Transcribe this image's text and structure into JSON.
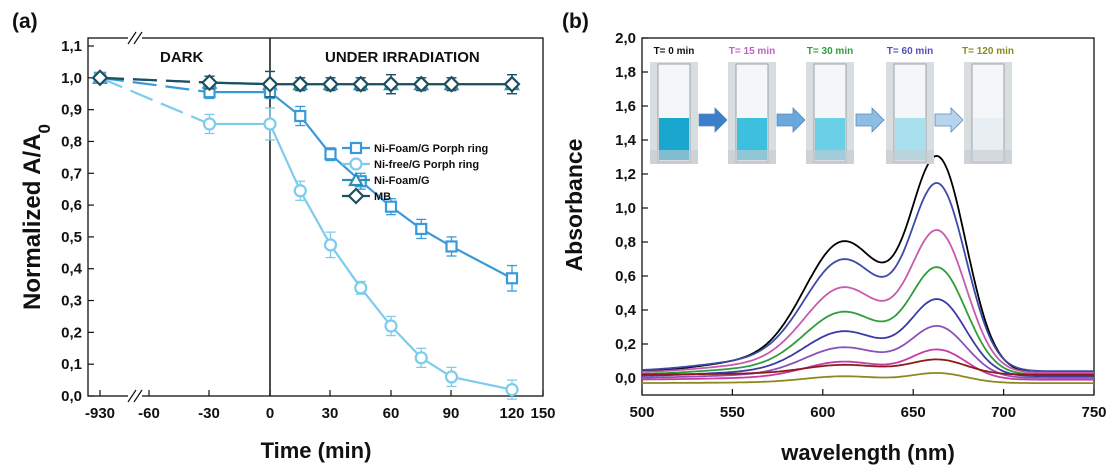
{
  "panel_a_letter": "(a)",
  "panel_b_letter": "(b)",
  "chart_data": [
    {
      "type": "line",
      "panel": "(a)",
      "xlabel": "Time (min)",
      "ylabel": "Normalized A/A",
      "ylabel_subscript": "0",
      "x_ticks": [
        "-930",
        "-60",
        "-30",
        "0",
        "30",
        "60",
        "90",
        "120",
        "150"
      ],
      "y_ticks": [
        "0,0",
        "0,1",
        "0,2",
        "0,3",
        "0,4",
        "0,5",
        "0,6",
        "0,7",
        "0,8",
        "0,9",
        "1,0",
        "1,1"
      ],
      "ylim": [
        0,
        1.1
      ],
      "regions": {
        "dark": "DARK",
        "irradiation": "UNDER IRRADIATION"
      },
      "legend_position": "center-right",
      "series": [
        {
          "name": "Ni-Foam/G Porph ring",
          "marker": "square",
          "color": "#3a9ad9",
          "x": [
            -930,
            -30,
            0,
            15,
            30,
            45,
            60,
            75,
            90,
            120
          ],
          "y": [
            1.0,
            0.955,
            0.955,
            0.88,
            0.76,
            0.675,
            0.595,
            0.525,
            0.47,
            0.37
          ],
          "err": [
            0,
            0.02,
            0.02,
            0.03,
            0.02,
            0.025,
            0.025,
            0.03,
            0.03,
            0.04
          ]
        },
        {
          "name": "Ni-free/G Porph ring",
          "marker": "circle",
          "color": "#7dccec",
          "x": [
            -930,
            -30,
            0,
            15,
            30,
            45,
            60,
            75,
            90,
            120
          ],
          "y": [
            1.0,
            0.855,
            0.855,
            0.645,
            0.475,
            0.34,
            0.22,
            0.12,
            0.06,
            0.02
          ],
          "err": [
            0,
            0.03,
            0.05,
            0.03,
            0.04,
            0.02,
            0.03,
            0.03,
            0.03,
            0.03
          ]
        },
        {
          "name": "Ni-Foam/G",
          "marker": "triangle",
          "color": "#2a8fb8",
          "x": [
            -930,
            -30,
            0,
            15,
            30,
            45,
            60,
            75,
            90,
            120
          ],
          "y": [
            1.0,
            0.985,
            0.98,
            0.98,
            0.98,
            0.98,
            0.98,
            0.98,
            0.98,
            0.98
          ],
          "err": [
            0,
            0.02,
            0.04,
            0.02,
            0.02,
            0.02,
            0.03,
            0.02,
            0.02,
            0.03
          ]
        },
        {
          "name": "MB",
          "marker": "diamond",
          "color": "#1d4f5f",
          "x": [
            -930,
            -30,
            0,
            15,
            30,
            45,
            60,
            75,
            90,
            120
          ],
          "y": [
            1.0,
            0.985,
            0.98,
            0.98,
            0.98,
            0.98,
            0.98,
            0.98,
            0.98,
            0.98
          ],
          "err": [
            0,
            0.02,
            0.04,
            0.02,
            0.02,
            0.02,
            0.03,
            0.02,
            0.02,
            0.03
          ]
        }
      ]
    },
    {
      "type": "line",
      "panel": "(b)",
      "xlabel": "wavelength (nm)",
      "ylabel": "Absorbance",
      "xlim": [
        500,
        750
      ],
      "ylim": [
        -0.1,
        2.0
      ],
      "x_ticks": [
        "500",
        "550",
        "600",
        "650",
        "700",
        "750"
      ],
      "y_ticks": [
        "0,0",
        "0,2",
        "0,4",
        "0,6",
        "0,8",
        "1,0",
        "1,2",
        "1,4",
        "1,6",
        "1,8",
        "2,0"
      ],
      "spectra": [
        {
          "color": "#000000",
          "peak": 1.32,
          "shoulder": 0.79,
          "baseline": 0.03
        },
        {
          "color": "#3d4aa6",
          "peak": 1.16,
          "shoulder": 0.68,
          "baseline": 0.04
        },
        {
          "color": "#c85aae",
          "peak": 0.88,
          "shoulder": 0.52,
          "baseline": 0.03
        },
        {
          "color": "#2f9e3a",
          "peak": 0.66,
          "shoulder": 0.38,
          "baseline": 0.02
        },
        {
          "color": "#3d3aa6",
          "peak": 0.47,
          "shoulder": 0.27,
          "baseline": 0.01
        },
        {
          "color": "#8a52b8",
          "peak": 0.31,
          "shoulder": 0.18,
          "baseline": 0.0
        },
        {
          "color": "#c63ca4",
          "peak": 0.17,
          "shoulder": 0.1,
          "baseline": -0.01
        },
        {
          "color": "#8b1a1a",
          "peak": 0.11,
          "shoulder": 0.07,
          "baseline": 0.02
        },
        {
          "color": "#8a8a20",
          "peak": 0.03,
          "shoulder": 0.02,
          "baseline": -0.03
        }
      ],
      "inset_labels": [
        {
          "text": "T= 0 min",
          "color": "#111111"
        },
        {
          "text": "T= 15 min",
          "color": "#c060c0"
        },
        {
          "text": "T= 30 min",
          "color": "#2f9e3a"
        },
        {
          "text": "T= 60 min",
          "color": "#5050b8"
        },
        {
          "text": "T= 120 min",
          "color": "#8a8a20"
        }
      ],
      "cuvette_colors": [
        "#1aa7cf",
        "#3cc0de",
        "#6ad0e6",
        "#a8e0ee",
        "#e8eef2"
      ],
      "arrow_colors": [
        "#3a7fc8",
        "#6aa8dc",
        "#8ebde4",
        "#b8d4ec"
      ]
    }
  ]
}
